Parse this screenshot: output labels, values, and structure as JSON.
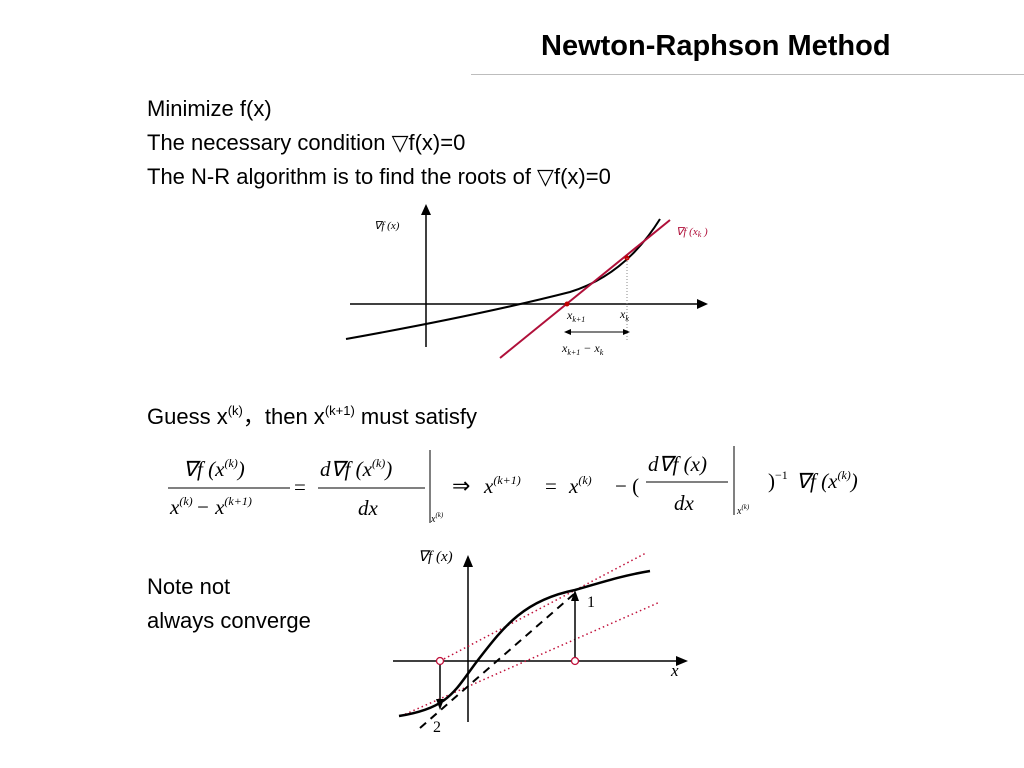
{
  "slide": {
    "title": "Newton-Raphson Method",
    "lines": [
      "Minimize f(x)",
      "The necessary condition ▽f(x)=0",
      "The N-R algorithm is to find the roots of ▽f(x)=0"
    ],
    "guess": {
      "part1": "Guess x",
      "sup1": "(k)",
      "part2": "，then x",
      "sup2": "(k+1)",
      "part3": " must satisfy"
    },
    "note": [
      "Note not",
      "always converge"
    ]
  },
  "figure1": {
    "ylabel": "∇f (x)",
    "tangent_label": "∇f (x",
    "tangent_sub": "k",
    "xk1_sub": "k+1",
    "xk_sub": "k",
    "diff_label": "x",
    "diff_sub1": "k+1",
    "diff_minus": "− x",
    "diff_sub2": "k",
    "colors": {
      "curve": "#000000",
      "tangent": "#b0103a",
      "point": "#c00000"
    }
  },
  "formula": {
    "num1": "∇f (x",
    "sup_k": "(k)",
    "close": ")",
    "den_x": "x",
    "den_minus": "− x",
    "sup_k1": "(k+1)",
    "eq": "=",
    "num2": "d∇f (x",
    "dx": "dx",
    "implies": "⇒",
    "paren_open": "− (",
    "num3": "d∇f (x)",
    "inv_paren": ")",
    "inv_sup": "−1",
    "tail": "∇f (x"
  },
  "figure2": {
    "ylabel": "∇f (x)",
    "xlabel": "x",
    "label1": "1",
    "label2": "2",
    "colors": {
      "curve": "#000000",
      "dotted": "#c0103a",
      "circle": "#c0103a"
    }
  }
}
